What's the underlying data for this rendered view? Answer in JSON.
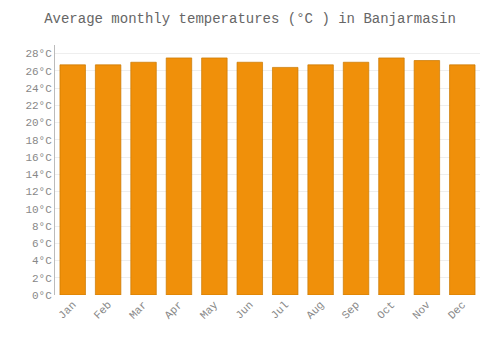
{
  "chart_data": {
    "type": "bar",
    "title": "Average monthly temperatures (°C ) in Banjarmasin",
    "categories": [
      "Jan",
      "Feb",
      "Mar",
      "Apr",
      "May",
      "Jun",
      "Jul",
      "Aug",
      "Sep",
      "Oct",
      "Nov",
      "Dec"
    ],
    "values": [
      26.7,
      26.7,
      27.0,
      27.5,
      27.5,
      27.0,
      26.4,
      26.7,
      27.0,
      27.5,
      27.2,
      26.7
    ],
    "color": "#F0900A",
    "ylim": [
      0,
      29
    ],
    "yticks": [
      {
        "value": 0,
        "label": "0°C"
      },
      {
        "value": 2,
        "label": "2°C"
      },
      {
        "value": 4,
        "label": "4°C"
      },
      {
        "value": 6,
        "label": "6°C"
      },
      {
        "value": 8,
        "label": "8°C"
      },
      {
        "value": 10,
        "label": "10°C"
      },
      {
        "value": 12,
        "label": "12°C"
      },
      {
        "value": 14,
        "label": "14°C"
      },
      {
        "value": 16,
        "label": "16°C"
      },
      {
        "value": 18,
        "label": "18°C"
      },
      {
        "value": 20,
        "label": "20°C"
      },
      {
        "value": 22,
        "label": "22°C"
      },
      {
        "value": 24,
        "label": "24°C"
      },
      {
        "value": 26,
        "label": "26°C"
      },
      {
        "value": 28,
        "label": "28°C"
      }
    ],
    "grid": true
  }
}
